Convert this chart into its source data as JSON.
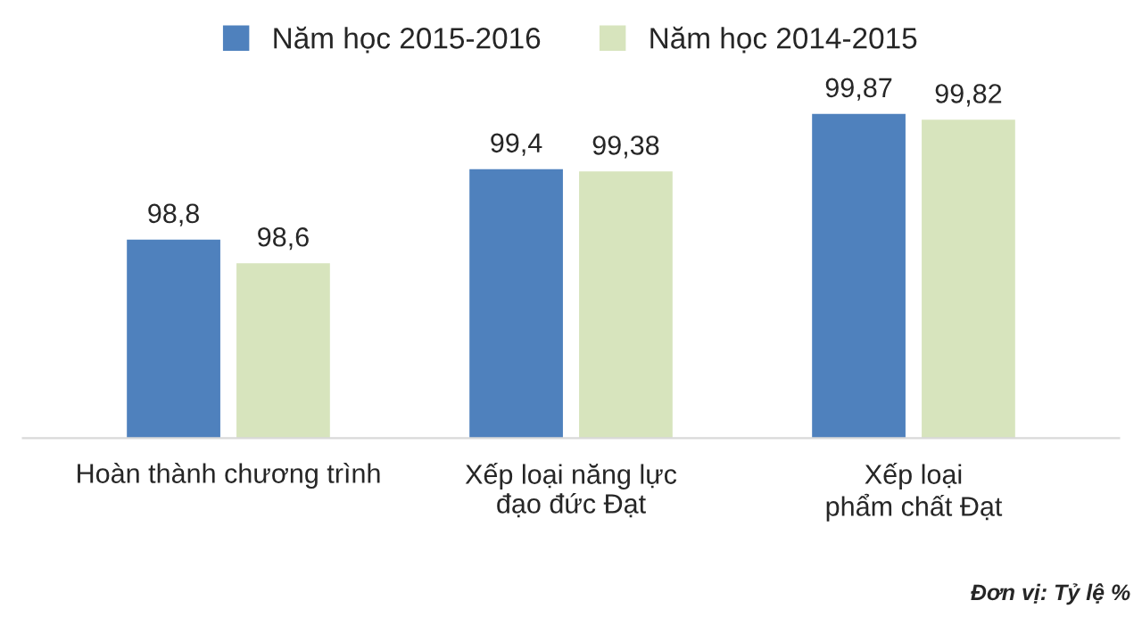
{
  "chart_data": {
    "type": "bar",
    "categories": [
      "Hoàn thành chương trình",
      "Xếp loại năng lực\nđạo đức Đạt",
      "Xếp loại\nphẩm chất Đạt"
    ],
    "series": [
      {
        "name": "Năm học 2015-2016",
        "color": "#4f81bd",
        "values": [
          98.8,
          99.4,
          99.87
        ],
        "value_labels": [
          "98,8",
          "99,4",
          "99,87"
        ]
      },
      {
        "name": "Năm học 2014-2015",
        "color": "#d7e4bd",
        "values": [
          98.6,
          99.38,
          99.82
        ],
        "value_labels": [
          "98,6",
          "99,38",
          "99,82"
        ]
      }
    ],
    "tick_labels": "x",
    "legend": "top",
    "annotations": [
      "Đơn vị: Tỷ lệ %"
    ]
  }
}
